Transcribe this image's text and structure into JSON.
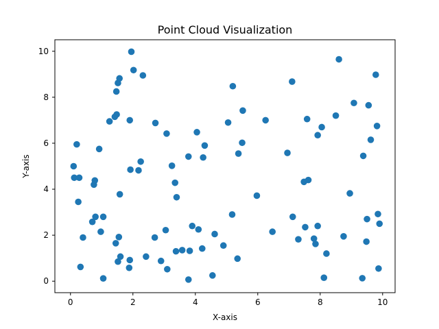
{
  "chart_data": {
    "type": "scatter",
    "title": "Point Cloud Visualization",
    "xlabel": "X-axis",
    "ylabel": "Y-axis",
    "xlim": [
      -0.5,
      10.4
    ],
    "ylim": [
      -0.5,
      10.5
    ],
    "xticks": [
      0,
      2,
      4,
      6,
      8,
      10
    ],
    "yticks": [
      0,
      2,
      4,
      6,
      8,
      10
    ],
    "grid": false,
    "legend": "none",
    "marker_color": "#1f77b4",
    "series": [
      {
        "points": [
          [
            0.1,
            5.0
          ],
          [
            0.12,
            4.5
          ],
          [
            0.2,
            5.95
          ],
          [
            0.25,
            3.45
          ],
          [
            0.28,
            4.5
          ],
          [
            0.32,
            0.62
          ],
          [
            0.4,
            1.9
          ],
          [
            0.7,
            2.58
          ],
          [
            0.75,
            4.2
          ],
          [
            0.78,
            4.38
          ],
          [
            0.8,
            2.8
          ],
          [
            0.92,
            5.75
          ],
          [
            0.97,
            2.15
          ],
          [
            1.05,
            2.8
          ],
          [
            1.05,
            0.12
          ],
          [
            1.25,
            6.95
          ],
          [
            1.42,
            7.15
          ],
          [
            1.45,
            1.65
          ],
          [
            1.48,
            7.25
          ],
          [
            1.47,
            8.25
          ],
          [
            1.52,
            8.62
          ],
          [
            1.52,
            0.85
          ],
          [
            1.55,
            1.92
          ],
          [
            1.57,
            8.82
          ],
          [
            1.58,
            3.78
          ],
          [
            1.6,
            1.07
          ],
          [
            1.88,
            0.58
          ],
          [
            1.9,
            0.92
          ],
          [
            1.9,
            7.0
          ],
          [
            1.92,
            4.85
          ],
          [
            1.95,
            9.98
          ],
          [
            2.02,
            9.18
          ],
          [
            2.18,
            4.82
          ],
          [
            2.25,
            5.2
          ],
          [
            2.32,
            8.95
          ],
          [
            2.42,
            1.07
          ],
          [
            2.7,
            1.9
          ],
          [
            2.72,
            6.88
          ],
          [
            2.9,
            0.88
          ],
          [
            3.05,
            2.22
          ],
          [
            3.08,
            6.42
          ],
          [
            3.1,
            0.52
          ],
          [
            3.25,
            5.02
          ],
          [
            3.35,
            4.28
          ],
          [
            3.38,
            1.3
          ],
          [
            3.4,
            3.65
          ],
          [
            3.58,
            1.35
          ],
          [
            3.78,
            5.42
          ],
          [
            3.78,
            0.07
          ],
          [
            3.82,
            1.32
          ],
          [
            3.9,
            2.4
          ],
          [
            4.05,
            6.48
          ],
          [
            4.1,
            2.25
          ],
          [
            4.22,
            1.42
          ],
          [
            4.25,
            5.38
          ],
          [
            4.3,
            5.9
          ],
          [
            4.55,
            0.25
          ],
          [
            4.62,
            2.05
          ],
          [
            4.9,
            1.55
          ],
          [
            5.05,
            6.9
          ],
          [
            5.18,
            2.9
          ],
          [
            5.2,
            8.48
          ],
          [
            5.35,
            0.98
          ],
          [
            5.38,
            5.55
          ],
          [
            5.5,
            6.02
          ],
          [
            5.52,
            7.42
          ],
          [
            5.97,
            3.72
          ],
          [
            6.25,
            7.0
          ],
          [
            6.47,
            2.15
          ],
          [
            6.95,
            5.58
          ],
          [
            7.1,
            8.68
          ],
          [
            7.12,
            2.8
          ],
          [
            7.3,
            1.82
          ],
          [
            7.48,
            4.32
          ],
          [
            7.52,
            2.35
          ],
          [
            7.58,
            7.05
          ],
          [
            7.62,
            4.4
          ],
          [
            7.8,
            1.85
          ],
          [
            7.85,
            1.62
          ],
          [
            7.92,
            6.35
          ],
          [
            7.92,
            2.4
          ],
          [
            8.05,
            6.7
          ],
          [
            8.12,
            0.15
          ],
          [
            8.2,
            1.2
          ],
          [
            8.5,
            7.2
          ],
          [
            8.6,
            9.65
          ],
          [
            8.75,
            1.95
          ],
          [
            8.95,
            3.82
          ],
          [
            9.08,
            7.75
          ],
          [
            9.35,
            0.13
          ],
          [
            9.38,
            5.45
          ],
          [
            9.48,
            1.72
          ],
          [
            9.5,
            2.7
          ],
          [
            9.55,
            7.65
          ],
          [
            9.62,
            6.15
          ],
          [
            9.78,
            8.98
          ],
          [
            9.82,
            6.75
          ],
          [
            9.85,
            2.92
          ],
          [
            9.87,
            0.55
          ],
          [
            9.9,
            2.5
          ]
        ]
      }
    ]
  }
}
